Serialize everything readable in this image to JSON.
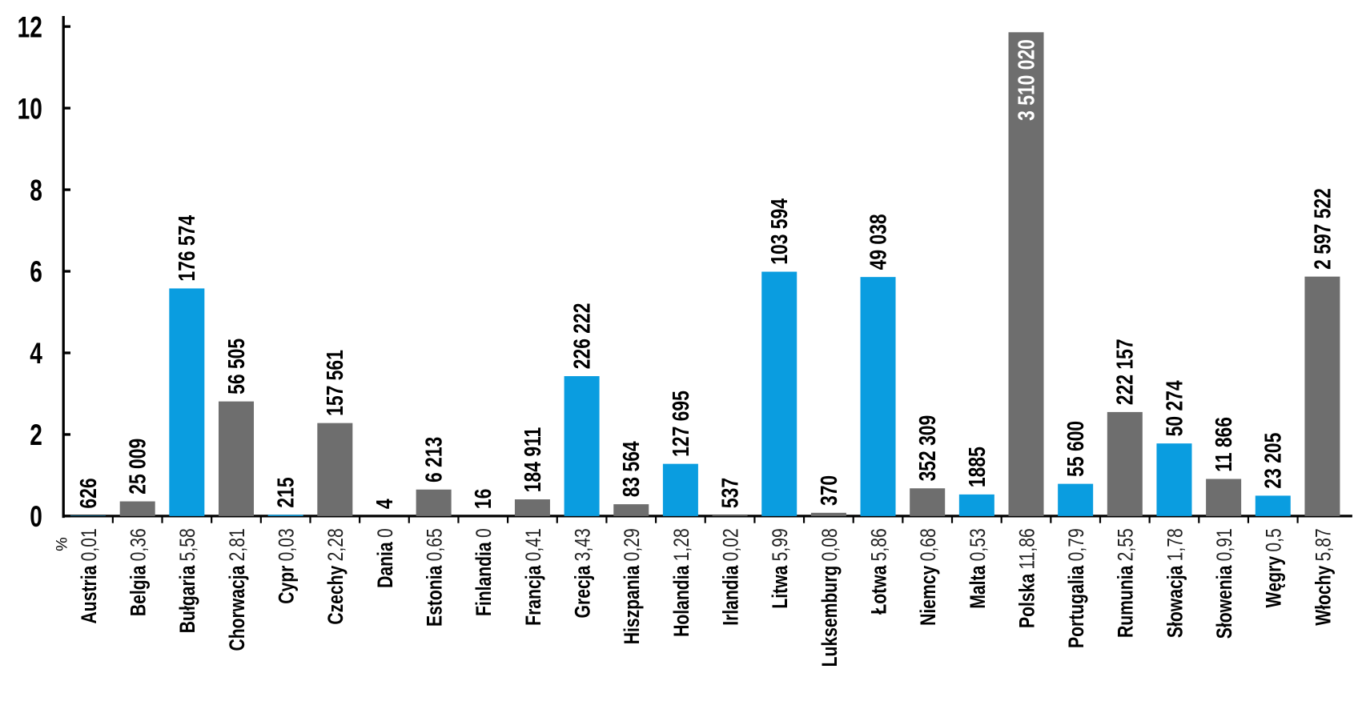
{
  "chart_data": {
    "type": "bar",
    "y_label": "%",
    "categories": [
      "Austria",
      "Belgia",
      "Bułgaria",
      "Chorwacja",
      "Cypr",
      "Czechy",
      "Dania",
      "Estonia",
      "Finlandia",
      "Francja",
      "Grecja",
      "Hiszpania",
      "Holandia",
      "Irlandia",
      "Litwa",
      "Luksemburg",
      "Łotwa",
      "Niemcy",
      "Malta",
      "Polska",
      "Portugalia",
      "Rumunia",
      "Słowacja",
      "Słowenia",
      "Węgry",
      "Włochy"
    ],
    "values": [
      0.01,
      0.36,
      5.58,
      2.81,
      0.03,
      2.28,
      0,
      0.65,
      0,
      0.41,
      3.43,
      0.29,
      1.28,
      0.02,
      5.99,
      0.08,
      5.86,
      0.68,
      0.53,
      11.86,
      0.79,
      2.55,
      1.78,
      0.91,
      0.5,
      5.87
    ],
    "value_labels": [
      "0,01",
      "0,36",
      "5,58",
      "2,81",
      "0,03",
      "2,28",
      "0",
      "0,65",
      "0",
      "0,41",
      "3,43",
      "0,29",
      "1,28",
      "0,02",
      "5,99",
      "0,08",
      "5,86",
      "0,68",
      "0,53",
      "11,86",
      "0,79",
      "2,55",
      "1,78",
      "0,91",
      "0,5",
      "5,87"
    ],
    "counts": [
      626,
      25009,
      176574,
      56505,
      215,
      157561,
      4,
      6213,
      16,
      184911,
      226222,
      83564,
      127695,
      537,
      103594,
      370,
      49038,
      352309,
      1885,
      3510020,
      55600,
      222157,
      50274,
      11866,
      23205,
      2597522
    ],
    "count_labels": [
      "626",
      "25 009",
      "176 574",
      "56 505",
      "215",
      "157 561",
      "4",
      "6 213",
      "16",
      "184 911",
      "226 222",
      "83 564",
      "127 695",
      "537",
      "103 594",
      "370",
      "49 038",
      "352 309",
      "1885",
      "3 510 020",
      "55 600",
      "222 157",
      "50 274",
      "11 866",
      "23 205",
      "2 597 522"
    ],
    "colors": [
      "#0a9de0",
      "#6e6e6e",
      "#0a9de0",
      "#6e6e6e",
      "#0a9de0",
      "#6e6e6e",
      "#6e6e6e",
      "#6e6e6e",
      "#6e6e6e",
      "#6e6e6e",
      "#0a9de0",
      "#6e6e6e",
      "#0a9de0",
      "#6e6e6e",
      "#0a9de0",
      "#6e6e6e",
      "#0a9de0",
      "#6e6e6e",
      "#0a9de0",
      "#6e6e6e",
      "#0a9de0",
      "#6e6e6e",
      "#0a9de0",
      "#6e6e6e",
      "#0a9de0",
      "#6e6e6e"
    ],
    "ylim": [
      0,
      12
    ],
    "yticks": [
      0,
      2,
      4,
      6,
      8,
      10,
      12
    ]
  }
}
